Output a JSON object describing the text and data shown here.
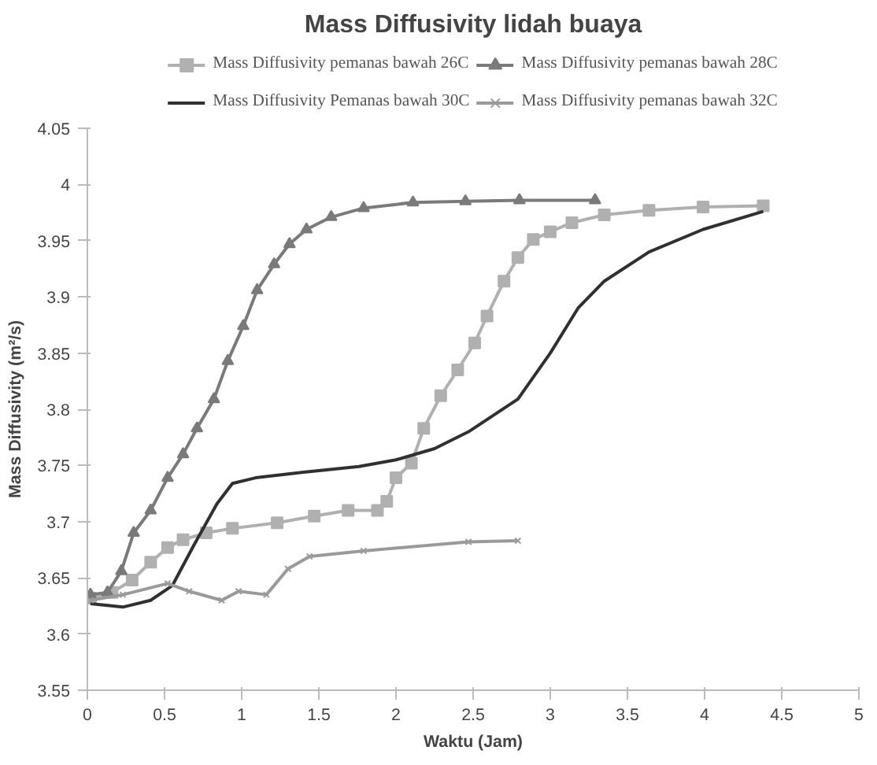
{
  "chart_data": {
    "type": "line",
    "title": "Mass Diffusivity lidah buaya",
    "xlabel": "Waktu (Jam)",
    "ylabel": "Mass Diffusivity (m²/s)",
    "xlim": [
      0,
      5
    ],
    "xticks": [
      0,
      0.5,
      1,
      1.5,
      2,
      2.5,
      3,
      3.5,
      4,
      4.5,
      5
    ],
    "ylim": [
      3.55,
      4.05
    ],
    "yticks": [
      3.55,
      3.6,
      3.65,
      3.7,
      3.75,
      3.8,
      3.85,
      3.9,
      3.95,
      4,
      4.05
    ],
    "grid": false,
    "legend": "top",
    "series": [
      {
        "name": "Mass Diffusivity pemanas bawah 26C",
        "color": "#b0b0b0",
        "marker": "square",
        "x": [
          0.02,
          0.16,
          0.29,
          0.41,
          0.52,
          0.62,
          0.77,
          0.94,
          1.23,
          1.47,
          1.69,
          1.88,
          1.94,
          2.0,
          2.1,
          2.18,
          2.29,
          2.4,
          2.51,
          2.59,
          2.7,
          2.79,
          2.89,
          3.0,
          3.14,
          3.35,
          3.64,
          3.99,
          4.38
        ],
        "values": [
          3.632,
          3.637,
          3.648,
          3.664,
          3.677,
          3.684,
          3.69,
          3.694,
          3.699,
          3.705,
          3.71,
          3.71,
          3.718,
          3.739,
          3.752,
          3.783,
          3.812,
          3.835,
          3.859,
          3.883,
          3.914,
          3.935,
          3.951,
          3.958,
          3.966,
          3.973,
          3.977,
          3.98,
          3.981
        ]
      },
      {
        "name": "Mass Diffusivity pemanas bawah 28C",
        "color": "#7a7a7a",
        "marker": "triangle",
        "x": [
          0.02,
          0.13,
          0.22,
          0.3,
          0.41,
          0.52,
          0.62,
          0.71,
          0.82,
          0.91,
          1.01,
          1.1,
          1.21,
          1.31,
          1.42,
          1.58,
          1.79,
          2.11,
          2.45,
          2.8,
          3.29
        ],
        "values": [
          3.635,
          3.637,
          3.656,
          3.69,
          3.71,
          3.739,
          3.76,
          3.783,
          3.809,
          3.843,
          3.874,
          3.906,
          3.929,
          3.947,
          3.96,
          3.971,
          3.979,
          3.984,
          3.985,
          3.986,
          3.986
        ]
      },
      {
        "name": "Mass Diffusivity Pemanas bawah 30C",
        "color": "#303030",
        "marker": "none",
        "x": [
          0.02,
          0.23,
          0.41,
          0.55,
          0.69,
          0.84,
          0.94,
          1.09,
          1.4,
          1.76,
          2.0,
          2.25,
          2.47,
          2.79,
          3.0,
          3.18,
          3.35,
          3.64,
          3.99,
          4.38
        ],
        "values": [
          3.627,
          3.624,
          3.63,
          3.643,
          3.679,
          3.716,
          3.734,
          3.739,
          3.744,
          3.749,
          3.755,
          3.765,
          3.78,
          3.809,
          3.85,
          3.89,
          3.914,
          3.94,
          3.96,
          3.976
        ]
      },
      {
        "name": "Mass Diffusivity pemanas bawah 32C",
        "color": "#9a9a9a",
        "marker": "cross",
        "x": [
          0.02,
          0.23,
          0.52,
          0.66,
          0.87,
          0.98,
          1.16,
          1.3,
          1.44,
          1.79,
          2.47,
          2.79
        ],
        "values": [
          3.63,
          3.635,
          3.645,
          3.638,
          3.63,
          3.638,
          3.635,
          3.658,
          3.669,
          3.674,
          3.682,
          3.683
        ]
      }
    ]
  }
}
